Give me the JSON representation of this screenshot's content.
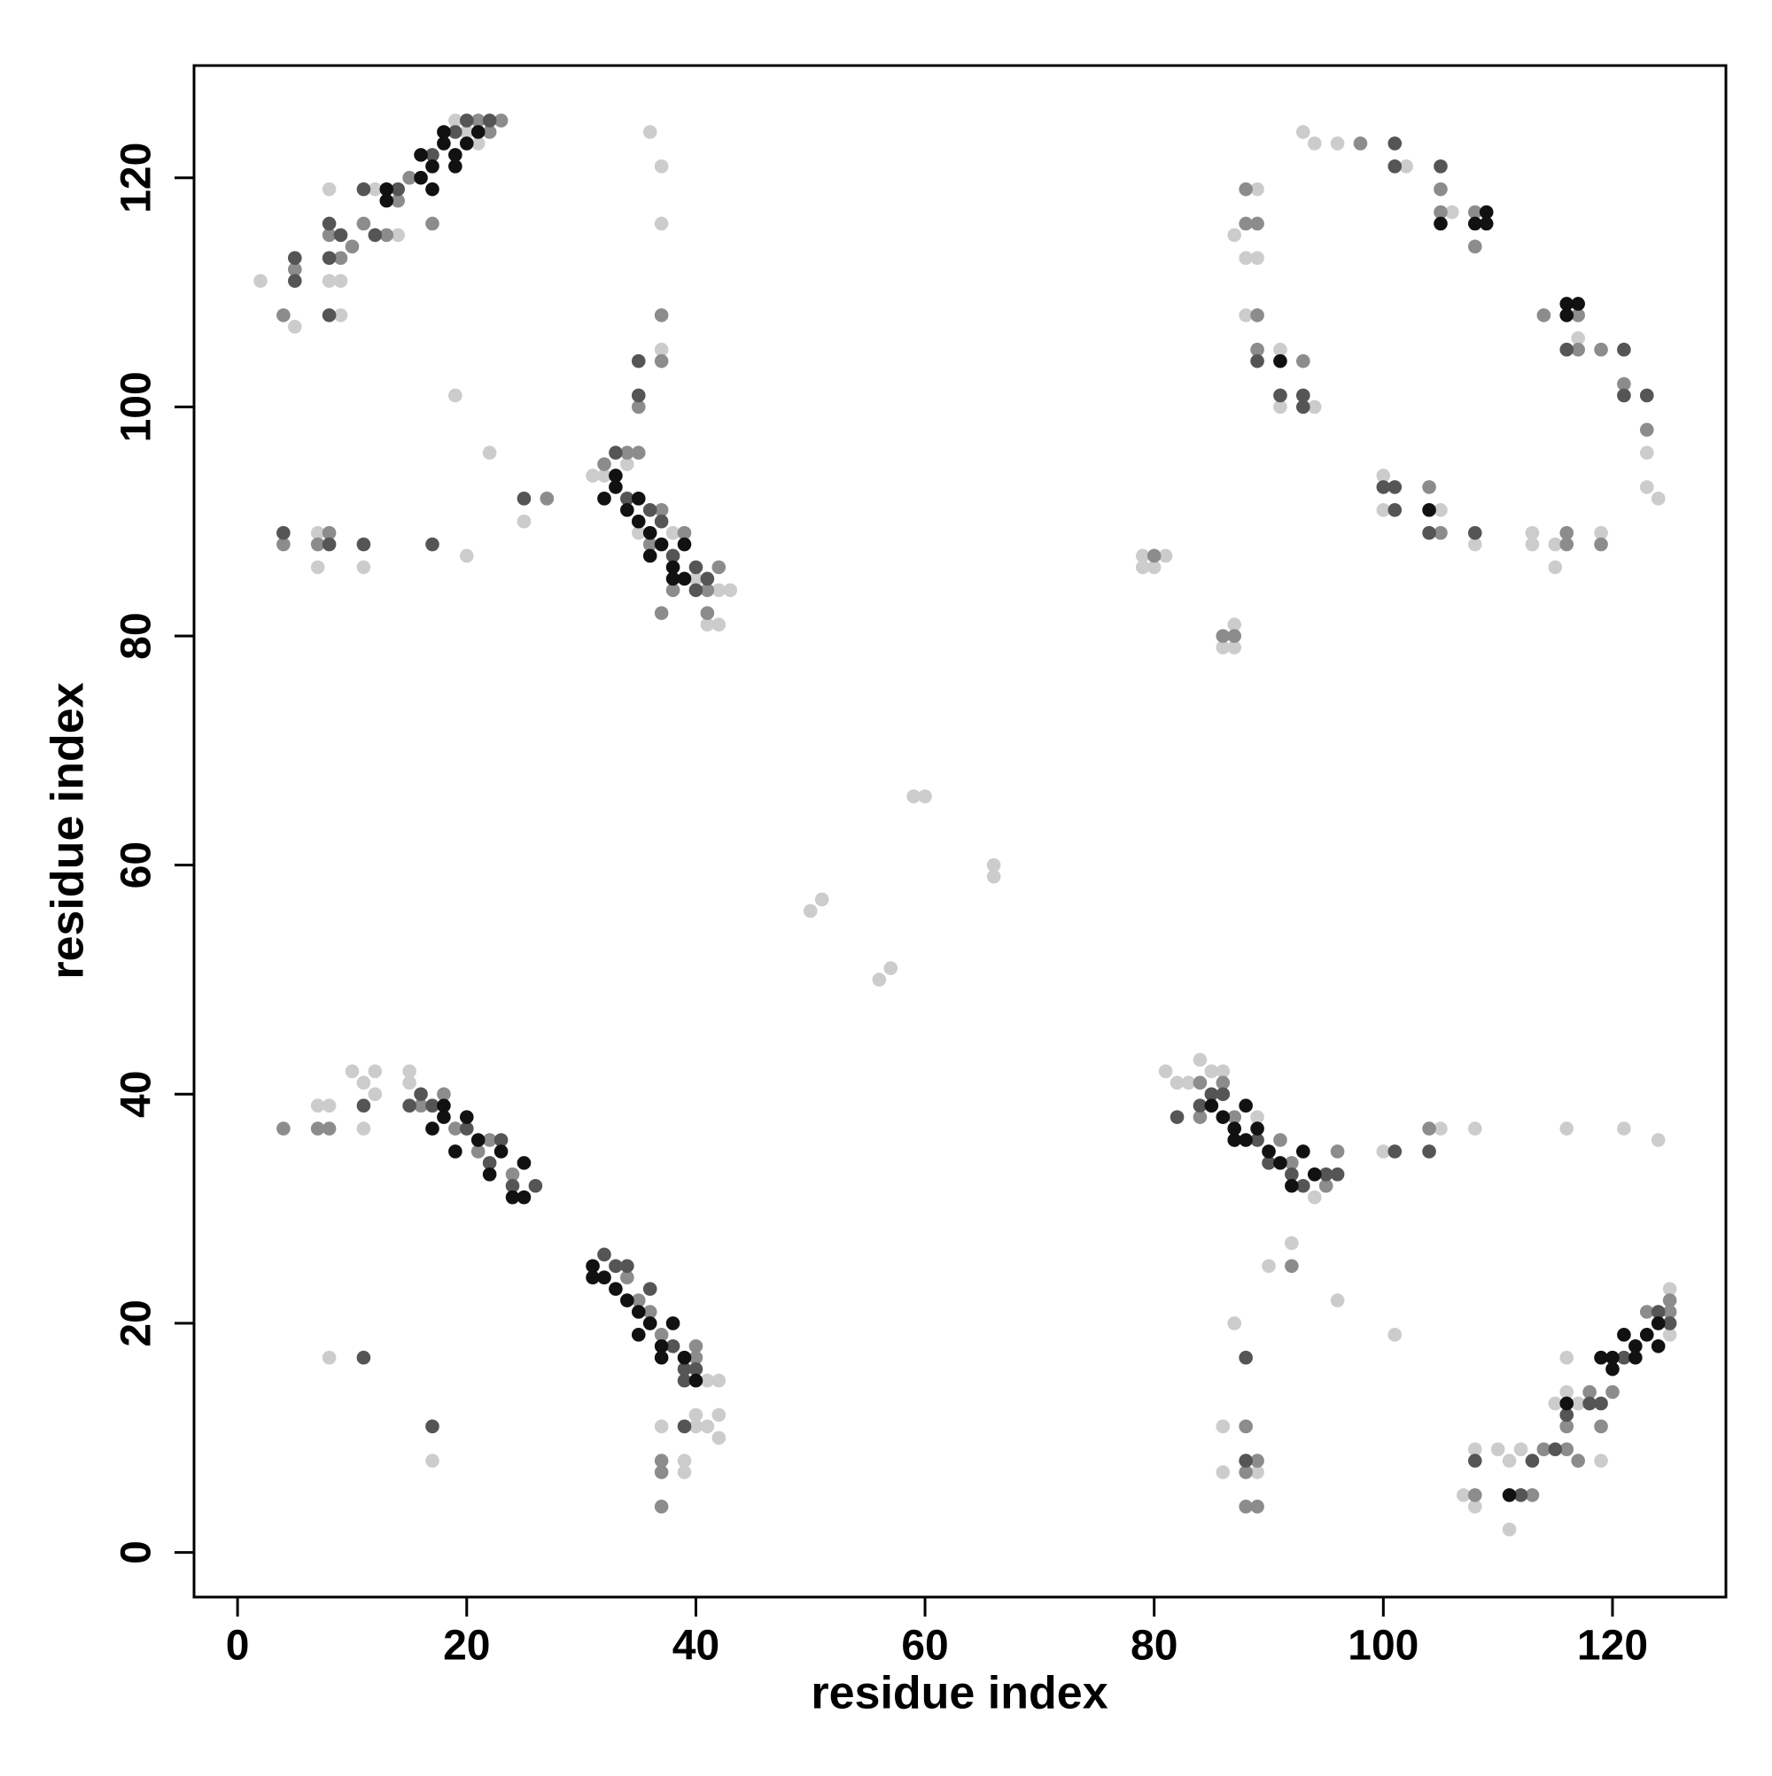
{
  "chart_data": {
    "type": "scatter",
    "xlabel": "residue index",
    "ylabel": "residue index",
    "xlim": [
      -3.8,
      129.9
    ],
    "ylim": [
      -3.9,
      129.8
    ],
    "xticks": [
      0,
      20,
      40,
      60,
      80,
      100,
      120
    ],
    "yticks": [
      0,
      20,
      40,
      60,
      80,
      100,
      120
    ],
    "grid": false,
    "series": [
      {
        "color": "#cccccc",
        "x": [
          2,
          5,
          8,
          8,
          9,
          9,
          12,
          14,
          19,
          20,
          21,
          31,
          32,
          34,
          35,
          38,
          40,
          42,
          41,
          42,
          43,
          15,
          15,
          10,
          11,
          12,
          12,
          7,
          8,
          11,
          8,
          17,
          41,
          42,
          40,
          41,
          42,
          42,
          40,
          37,
          39,
          39,
          81,
          82,
          83,
          84,
          85,
          86,
          94,
          95,
          89,
          100,
          105,
          108,
          116,
          121,
          124,
          92,
          90,
          96,
          101,
          87,
          86,
          86,
          89,
          107,
          108,
          108,
          110,
          111,
          111,
          112,
          115,
          116,
          117,
          119,
          125,
          125,
          116,
          93,
          94,
          96,
          102,
          106,
          87,
          89,
          88,
          89,
          88,
          91,
          91,
          94,
          100,
          100,
          105,
          108,
          113,
          113,
          115,
          115,
          119,
          117,
          123,
          123,
          124,
          79,
          79,
          80,
          81,
          87,
          86,
          87,
          7,
          7,
          11,
          20,
          22,
          25,
          19,
          36,
          37,
          37,
          37,
          50,
          51,
          56,
          57,
          59,
          60,
          66,
          66
        ],
        "values": [
          111,
          107,
          119,
          111,
          108,
          111,
          119,
          115,
          125,
          124,
          123,
          94,
          94,
          95,
          89,
          89,
          85,
          84,
          81,
          81,
          84,
          42,
          41,
          42,
          41,
          40,
          42,
          39,
          39,
          37,
          17,
          8,
          15,
          15,
          12,
          11,
          12,
          10,
          11,
          11,
          8,
          7,
          42,
          41,
          41,
          43,
          42,
          42,
          31,
          32,
          38,
          35,
          37,
          37,
          37,
          37,
          36,
          27,
          25,
          22,
          19,
          20,
          11,
          7,
          7,
          5,
          4,
          9,
          9,
          2,
          8,
          9,
          13,
          14,
          13,
          8,
          23,
          19,
          17,
          124,
          123,
          123,
          121,
          117,
          115,
          119,
          113,
          113,
          108,
          105,
          100,
          100,
          94,
          91,
          91,
          88,
          89,
          88,
          86,
          88,
          89,
          106,
          96,
          93,
          92,
          87,
          86,
          86,
          87,
          81,
          79,
          79,
          89,
          86,
          86,
          87,
          96,
          90,
          101,
          124,
          121,
          116,
          105,
          56,
          57,
          50,
          51,
          66,
          66,
          60,
          59
        ]
      },
      {
        "color": "#8c8c8c",
        "x": [
          4,
          5,
          8,
          9,
          10,
          11,
          13,
          14,
          15,
          21,
          23,
          22,
          17,
          32,
          35,
          36,
          37,
          38,
          37,
          39,
          41,
          42,
          41,
          34,
          16,
          19,
          21,
          22,
          24,
          18,
          4,
          7,
          8,
          34,
          35,
          36,
          37,
          40,
          40,
          37,
          37,
          37,
          84,
          86,
          87,
          91,
          92,
          95,
          96,
          84,
          104,
          92,
          88,
          89,
          88,
          88,
          89,
          108,
          113,
          114,
          116,
          116,
          117,
          118,
          119,
          120,
          123,
          125,
          125,
          98,
          105,
          105,
          108,
          108,
          88,
          88,
          89,
          89,
          89,
          93,
          104,
          105,
          116,
          116,
          119,
          114,
          117,
          117,
          119,
          121,
          123,
          80,
          86,
          87,
          4,
          7,
          8,
          27,
          37,
          37,
          35
        ],
        "values": [
          108,
          112,
          115,
          113,
          114,
          116,
          115,
          118,
          120,
          125,
          125,
          124,
          116,
          95,
          96,
          88,
          91,
          84,
          82,
          89,
          84,
          86,
          82,
          96,
          39,
          37,
          35,
          36,
          33,
          40,
          37,
          37,
          37,
          24,
          22,
          21,
          19,
          17,
          18,
          8,
          7,
          4,
          41,
          41,
          38,
          36,
          34,
          32,
          35,
          38,
          37,
          25,
          11,
          8,
          7,
          4,
          4,
          5,
          5,
          9,
          11,
          9,
          8,
          14,
          11,
          14,
          21,
          22,
          21,
          123,
          119,
          117,
          117,
          114,
          119,
          116,
          116,
          108,
          105,
          104,
          93,
          89,
          88,
          89,
          88,
          108,
          108,
          105,
          105,
          102,
          98,
          87,
          80,
          80,
          88,
          88,
          89,
          92,
          108,
          104,
          100
        ]
      },
      {
        "color": "#555555",
        "x": [
          5,
          8,
          8,
          9,
          11,
          12,
          14,
          17,
          19,
          20,
          22,
          5,
          8,
          33,
          34,
          36,
          37,
          38,
          40,
          41,
          40,
          16,
          17,
          20,
          22,
          23,
          24,
          26,
          15,
          11,
          11,
          17,
          32,
          33,
          34,
          36,
          38,
          39,
          40,
          39,
          39,
          85,
          86,
          84,
          89,
          90,
          92,
          93,
          95,
          96,
          82,
          101,
          104,
          88,
          88,
          108,
          112,
          113,
          115,
          116,
          118,
          119,
          121,
          124,
          125,
          101,
          101,
          105,
          89,
          91,
          93,
          93,
          100,
          101,
          101,
          104,
          108,
          116,
          121,
          121,
          123,
          4,
          8,
          11,
          17,
          25,
          35,
          35
        ],
        "values": [
          111,
          113,
          116,
          115,
          119,
          115,
          119,
          122,
          124,
          125,
          125,
          113,
          108,
          96,
          92,
          91,
          90,
          87,
          86,
          85,
          84,
          40,
          39,
          37,
          34,
          36,
          32,
          32,
          39,
          39,
          17,
          11,
          26,
          25,
          25,
          23,
          18,
          16,
          16,
          15,
          11,
          40,
          40,
          39,
          36,
          34,
          33,
          32,
          33,
          33,
          38,
          35,
          35,
          17,
          8,
          8,
          5,
          8,
          9,
          12,
          13,
          13,
          17,
          21,
          20,
          123,
          121,
          121,
          104,
          101,
          101,
          100,
          93,
          93,
          91,
          89,
          89,
          105,
          105,
          101,
          101,
          89,
          88,
          88,
          88,
          92,
          104,
          101
        ]
      },
      {
        "color": "#111111",
        "x": [
          13,
          13,
          16,
          16,
          17,
          17,
          18,
          18,
          19,
          19,
          20,
          21,
          32,
          33,
          33,
          34,
          35,
          35,
          36,
          36,
          37,
          38,
          38,
          39,
          39,
          17,
          18,
          19,
          20,
          21,
          22,
          23,
          24,
          25,
          25,
          18,
          31,
          31,
          32,
          33,
          34,
          35,
          35,
          36,
          37,
          37,
          38,
          39,
          40,
          85,
          86,
          87,
          88,
          88,
          89,
          90,
          91,
          92,
          93,
          94,
          87,
          111,
          116,
          119,
          120,
          120,
          121,
          122,
          123,
          124,
          124,
          122,
          105,
          108,
          109,
          109,
          91,
          104,
          116,
          117,
          116
        ],
        "values": [
          118,
          119,
          120,
          122,
          119,
          121,
          123,
          124,
          122,
          121,
          123,
          124,
          92,
          93,
          94,
          91,
          90,
          92,
          89,
          87,
          88,
          86,
          85,
          88,
          85,
          37,
          38,
          35,
          38,
          36,
          33,
          35,
          31,
          34,
          31,
          39,
          25,
          24,
          24,
          23,
          22,
          21,
          19,
          20,
          18,
          17,
          20,
          17,
          15,
          39,
          38,
          37,
          39,
          36,
          37,
          35,
          34,
          32,
          35,
          33,
          36,
          5,
          13,
          17,
          16,
          17,
          19,
          18,
          19,
          18,
          20,
          17,
          116,
          116,
          117,
          116,
          104,
          91,
          109,
          109,
          108
        ]
      }
    ]
  }
}
